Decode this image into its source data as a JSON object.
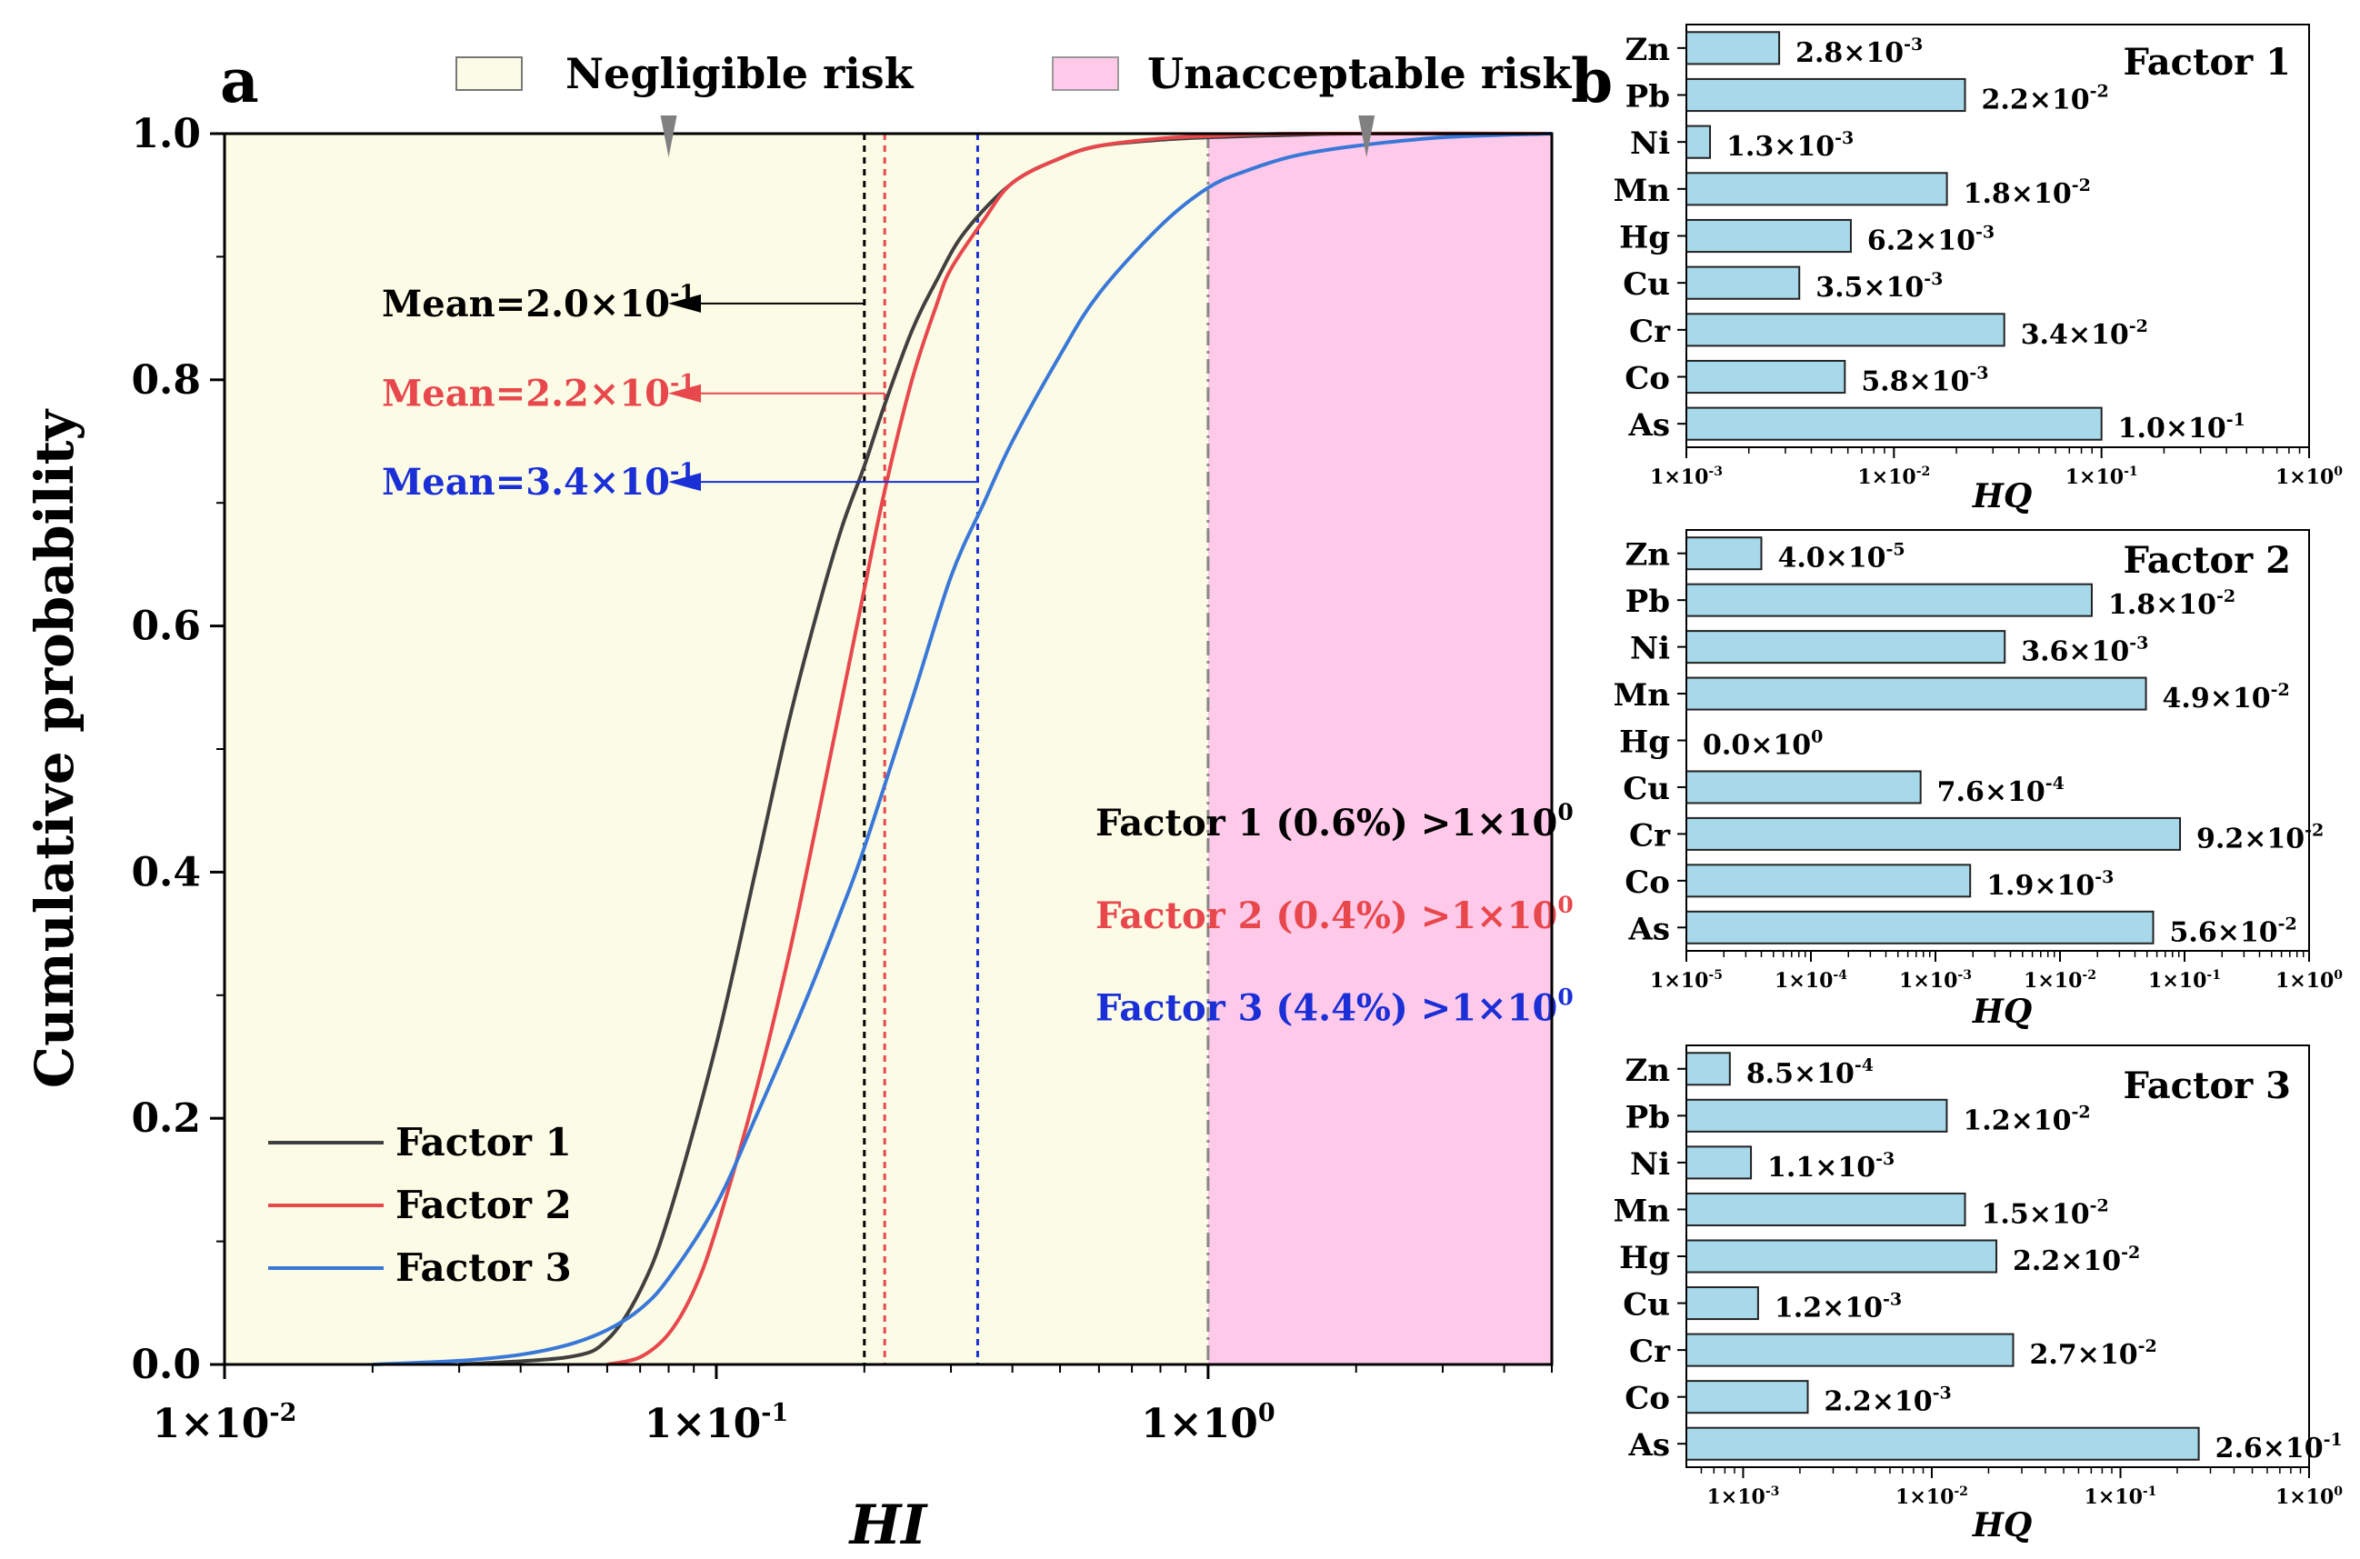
{
  "figure": {
    "panel_a_label": "a",
    "panel_b_label": "b",
    "legend_top": {
      "negligible": "Negligible risk",
      "unacceptable": "Unacceptable risk"
    },
    "colors": {
      "negligible_fill": "#fbfbe6",
      "unacceptable_fill": "#ffc9ea",
      "factor1": "#404040",
      "factor2": "#e8474c",
      "factor3": "#3a78d8",
      "bar_fill": "#a7d9ea",
      "bar_edge": "#222222",
      "marker": "#808080"
    }
  },
  "chart_data": [
    {
      "type": "line",
      "title": "",
      "xlabel": "HI",
      "ylabel": "Cumulative probability",
      "xscale": "log",
      "xlim": [
        0.01,
        5.0
      ],
      "ylim": [
        0.0,
        1.0
      ],
      "x_ticks": [
        0.01,
        0.1,
        1.0
      ],
      "x_tick_labels": [
        {
          "mantissa": "1×10",
          "exp": "-2"
        },
        {
          "mantissa": "1×10",
          "exp": "-1"
        },
        {
          "mantissa": "1×10",
          "exp": "0"
        }
      ],
      "y_ticks": [
        0.0,
        0.2,
        0.4,
        0.6,
        0.8,
        1.0
      ],
      "y_tick_labels": [
        "0.0",
        "0.2",
        "0.4",
        "0.6",
        "0.8",
        "1.0"
      ],
      "shaded_regions": [
        {
          "name": "Negligible risk",
          "x": [
            0.01,
            1.0
          ]
        },
        {
          "name": "Unacceptable risk",
          "x": [
            1.0,
            5.0
          ]
        }
      ],
      "threshold_line": 1.0,
      "triangle_markers_x": [
        0.08,
        2.1
      ],
      "series": [
        {
          "name": "Factor 1",
          "color": "#404040",
          "x": [
            0.03,
            0.05,
            0.06,
            0.07,
            0.08,
            0.1,
            0.12,
            0.14,
            0.16,
            0.18,
            0.2,
            0.22,
            0.25,
            0.28,
            0.32,
            0.4,
            0.5,
            0.6,
            0.8,
            1.0,
            1.5,
            2.0,
            5.0
          ],
          "y": [
            0.0,
            0.006,
            0.02,
            0.06,
            0.12,
            0.26,
            0.4,
            0.52,
            0.61,
            0.68,
            0.73,
            0.78,
            0.84,
            0.88,
            0.92,
            0.96,
            0.98,
            0.99,
            0.995,
            0.997,
            0.999,
            1.0,
            1.0
          ]
        },
        {
          "name": "Factor 2",
          "color": "#e8474c",
          "x": [
            0.06,
            0.07,
            0.08,
            0.09,
            0.1,
            0.12,
            0.14,
            0.16,
            0.18,
            0.2,
            0.22,
            0.25,
            0.28,
            0.3,
            0.35,
            0.4,
            0.5,
            0.6,
            0.8,
            1.0,
            1.5,
            5.0
          ],
          "y": [
            0.0,
            0.006,
            0.025,
            0.06,
            0.11,
            0.22,
            0.33,
            0.44,
            0.54,
            0.63,
            0.71,
            0.8,
            0.86,
            0.89,
            0.93,
            0.96,
            0.98,
            0.99,
            0.996,
            0.998,
            1.0,
            1.0
          ]
        },
        {
          "name": "Factor 3",
          "color": "#3a78d8",
          "x": [
            0.02,
            0.03,
            0.04,
            0.05,
            0.06,
            0.07,
            0.08,
            0.1,
            0.12,
            0.15,
            0.18,
            0.2,
            0.25,
            0.3,
            0.35,
            0.4,
            0.5,
            0.6,
            0.8,
            1.0,
            1.2,
            1.5,
            2.0,
            3.0,
            5.0
          ],
          "y": [
            0.0,
            0.003,
            0.008,
            0.016,
            0.028,
            0.045,
            0.07,
            0.13,
            0.2,
            0.29,
            0.37,
            0.42,
            0.54,
            0.64,
            0.7,
            0.75,
            0.82,
            0.87,
            0.925,
            0.956,
            0.97,
            0.982,
            0.99,
            0.997,
            1.0
          ]
        }
      ],
      "mean_lines": [
        {
          "series": "Factor 1",
          "value": 0.2,
          "label": "Mean=2.0×10",
          "exp": "-1",
          "color": "#000000",
          "arrow_y": 0.862
        },
        {
          "series": "Factor 2",
          "value": 0.22,
          "label": "Mean=2.2×10",
          "exp": "-1",
          "color": "#e8474c",
          "arrow_y": 0.789
        },
        {
          "series": "Factor 3",
          "value": 0.34,
          "label": "Mean=3.4×10",
          "exp": "-1",
          "color": "#1a2fd6",
          "arrow_y": 0.717
        }
      ],
      "annotations": [
        {
          "text": "Factor 1 (0.6%) >1×10",
          "exp": "0",
          "color": "#000000"
        },
        {
          "text": "Factor 2 (0.4%)  >1×10",
          "exp": "0",
          "color": "#e8474c"
        },
        {
          "text": "Factor 3 (4.4%) >1×10",
          "exp": "0",
          "color": "#1a2fd6"
        }
      ],
      "legend": [
        "Factor 1",
        "Factor 2",
        "Factor 3"
      ],
      "legend_position": "bottom-left"
    },
    {
      "type": "bar",
      "orientation": "horizontal",
      "title": "Factor 1",
      "xlabel": "HQ",
      "xscale": "log",
      "xlim": [
        0.001,
        1.0
      ],
      "x_ticks": [
        0.001,
        0.01,
        0.1,
        1.0
      ],
      "x_tick_labels": [
        {
          "mantissa": "1×10",
          "exp": "-3"
        },
        {
          "mantissa": "1×10",
          "exp": "-2"
        },
        {
          "mantissa": "1×10",
          "exp": "-1"
        },
        {
          "mantissa": "1×10",
          "exp": "0"
        }
      ],
      "categories": [
        "Zn",
        "Pb",
        "Ni",
        "Mn",
        "Hg",
        "Cu",
        "Cr",
        "Co",
        "As"
      ],
      "values": [
        0.0028,
        0.022,
        0.0013,
        0.018,
        0.0062,
        0.0035,
        0.034,
        0.0058,
        0.1
      ],
      "value_labels": [
        {
          "mantissa": "2.8×10",
          "exp": "-3"
        },
        {
          "mantissa": "2.2×10",
          "exp": "-2"
        },
        {
          "mantissa": "1.3×10",
          "exp": "-3"
        },
        {
          "mantissa": "1.8×10",
          "exp": "-2"
        },
        {
          "mantissa": "6.2×10",
          "exp": "-3"
        },
        {
          "mantissa": "3.5×10",
          "exp": "-3"
        },
        {
          "mantissa": "3.4×10",
          "exp": "-2"
        },
        {
          "mantissa": "5.8×10",
          "exp": "-3"
        },
        {
          "mantissa": "1.0×10",
          "exp": "-1"
        }
      ]
    },
    {
      "type": "bar",
      "orientation": "horizontal",
      "title": "Factor 2",
      "xlabel": "HQ",
      "xscale": "log",
      "xlim": [
        1e-05,
        1.0
      ],
      "x_ticks": [
        1e-05,
        0.0001,
        0.001,
        0.01,
        0.1,
        1.0
      ],
      "x_tick_labels": [
        {
          "mantissa": "1×10",
          "exp": "-5"
        },
        {
          "mantissa": "1×10",
          "exp": "-4"
        },
        {
          "mantissa": "1×10",
          "exp": "-3"
        },
        {
          "mantissa": "1×10",
          "exp": "-2"
        },
        {
          "mantissa": "1×10",
          "exp": "-1"
        },
        {
          "mantissa": "1×10",
          "exp": "0"
        }
      ],
      "categories": [
        "Zn",
        "Pb",
        "Ni",
        "Mn",
        "Hg",
        "Cu",
        "Cr",
        "Co",
        "As"
      ],
      "values": [
        4e-05,
        0.018,
        0.0036,
        0.049,
        0.0,
        0.00076,
        0.092,
        0.0019,
        0.056
      ],
      "value_labels": [
        {
          "mantissa": "4.0×10",
          "exp": "-5"
        },
        {
          "mantissa": "1.8×10",
          "exp": "-2"
        },
        {
          "mantissa": "3.6×10",
          "exp": "-3"
        },
        {
          "mantissa": "4.9×10",
          "exp": "-2"
        },
        {
          "mantissa": "0.0×10",
          "exp": "0"
        },
        {
          "mantissa": "7.6×10",
          "exp": "-4"
        },
        {
          "mantissa": "9.2×10",
          "exp": "-2"
        },
        {
          "mantissa": "1.9×10",
          "exp": "-3"
        },
        {
          "mantissa": "5.6×10",
          "exp": "-2"
        }
      ]
    },
    {
      "type": "bar",
      "orientation": "horizontal",
      "title": "Factor 3",
      "xlabel": "HQ",
      "xscale": "log",
      "xlim": [
        0.0005,
        1.0
      ],
      "x_ticks": [
        0.001,
        0.01,
        0.1,
        1.0
      ],
      "x_tick_labels": [
        {
          "mantissa": "1×10",
          "exp": "-3"
        },
        {
          "mantissa": "1×10",
          "exp": "-2"
        },
        {
          "mantissa": "1×10",
          "exp": "-1"
        },
        {
          "mantissa": "1×10",
          "exp": "0"
        }
      ],
      "categories": [
        "Zn",
        "Pb",
        "Ni",
        "Mn",
        "Hg",
        "Cu",
        "Cr",
        "Co",
        "As"
      ],
      "values": [
        0.00085,
        0.012,
        0.0011,
        0.015,
        0.022,
        0.0012,
        0.027,
        0.0022,
        0.26
      ],
      "value_labels": [
        {
          "mantissa": "8.5×10",
          "exp": "-4"
        },
        {
          "mantissa": "1.2×10",
          "exp": "-2"
        },
        {
          "mantissa": "1.1×10",
          "exp": "-3"
        },
        {
          "mantissa": "1.5×10",
          "exp": "-2"
        },
        {
          "mantissa": "2.2×10",
          "exp": "-2"
        },
        {
          "mantissa": "1.2×10",
          "exp": "-3"
        },
        {
          "mantissa": "2.7×10",
          "exp": "-2"
        },
        {
          "mantissa": "2.2×10",
          "exp": "-3"
        },
        {
          "mantissa": "2.6×10",
          "exp": "-1"
        }
      ]
    }
  ]
}
